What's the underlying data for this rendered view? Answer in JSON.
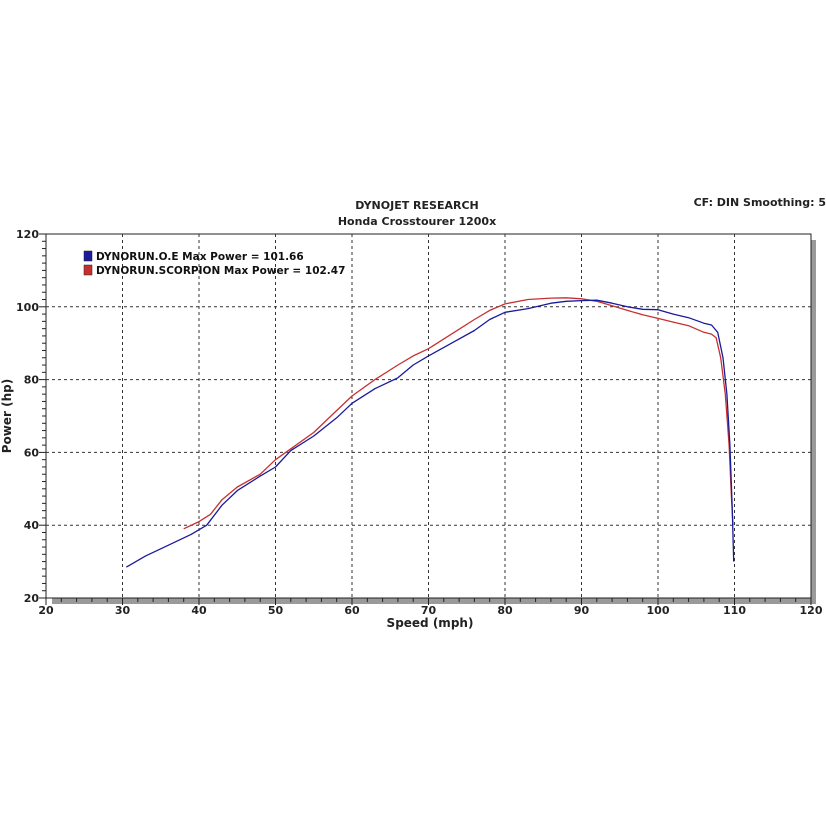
{
  "header": {
    "title": "DYNOJET RESEARCH",
    "subtitle": "Honda Crosstourer 1200x",
    "settings": "CF: DIN  Smoothing: 5"
  },
  "chart_data": {
    "type": "line",
    "title": "DYNOJET RESEARCH",
    "subtitle": "Honda Crosstourer 1200x",
    "xlabel": "Speed (mph)",
    "ylabel": "Power (hp)",
    "xlim": [
      20,
      120
    ],
    "ylim": [
      20,
      120
    ],
    "xticks": [
      20,
      30,
      40,
      50,
      60,
      70,
      80,
      90,
      100,
      110,
      120
    ],
    "yticks": [
      20,
      40,
      60,
      80,
      100,
      120
    ],
    "grid": true,
    "legend_position": "top-left",
    "series": [
      {
        "name": "DYNORUN.O.E Max Power = 101.66",
        "color": "#1a1a9c",
        "x": [
          30.5,
          33,
          36,
          39,
          41,
          43,
          45,
          48,
          50,
          52,
          55,
          58,
          60,
          63,
          66,
          68,
          70,
          73,
          76,
          78,
          80,
          83,
          86,
          88,
          90,
          92,
          94,
          96,
          98,
          100,
          102,
          104,
          106,
          107,
          107.8,
          108.5,
          109,
          109.4,
          109.7,
          109.9
        ],
        "y": [
          28.5,
          31.5,
          34.5,
          37.5,
          40,
          45.5,
          49.5,
          53.5,
          56,
          60.5,
          64.5,
          69.5,
          73.5,
          77.5,
          80.5,
          84,
          86.5,
          90,
          93.5,
          96.5,
          98.5,
          99.5,
          101,
          101.5,
          101.7,
          101.8,
          101,
          100,
          99.3,
          99.2,
          98,
          97,
          95.5,
          95,
          93,
          86,
          76,
          62,
          45,
          30
        ]
      },
      {
        "name": "DYNORUN.SCORPION Max Power = 102.47",
        "color": "#c83030",
        "x": [
          38,
          40,
          41.5,
          43,
          45,
          48,
          50,
          52,
          55,
          58,
          60,
          63,
          66,
          68,
          70,
          73,
          76,
          78,
          80,
          83,
          86,
          88,
          90,
          92,
          94,
          96,
          98,
          100,
          102,
          104,
          106,
          107,
          107.6,
          108.2,
          108.8,
          109.3,
          109.6,
          109.8
        ],
        "y": [
          39,
          41,
          43,
          47,
          50.5,
          54,
          58,
          61,
          65.5,
          71.5,
          75.5,
          80,
          84,
          86.5,
          88.5,
          92.5,
          96.5,
          99,
          100.8,
          102,
          102.4,
          102.47,
          102.2,
          101.5,
          100.3,
          99,
          97.8,
          96.8,
          95.8,
          94.8,
          93,
          92.5,
          91.5,
          86,
          76,
          62,
          48,
          40
        ]
      }
    ]
  }
}
